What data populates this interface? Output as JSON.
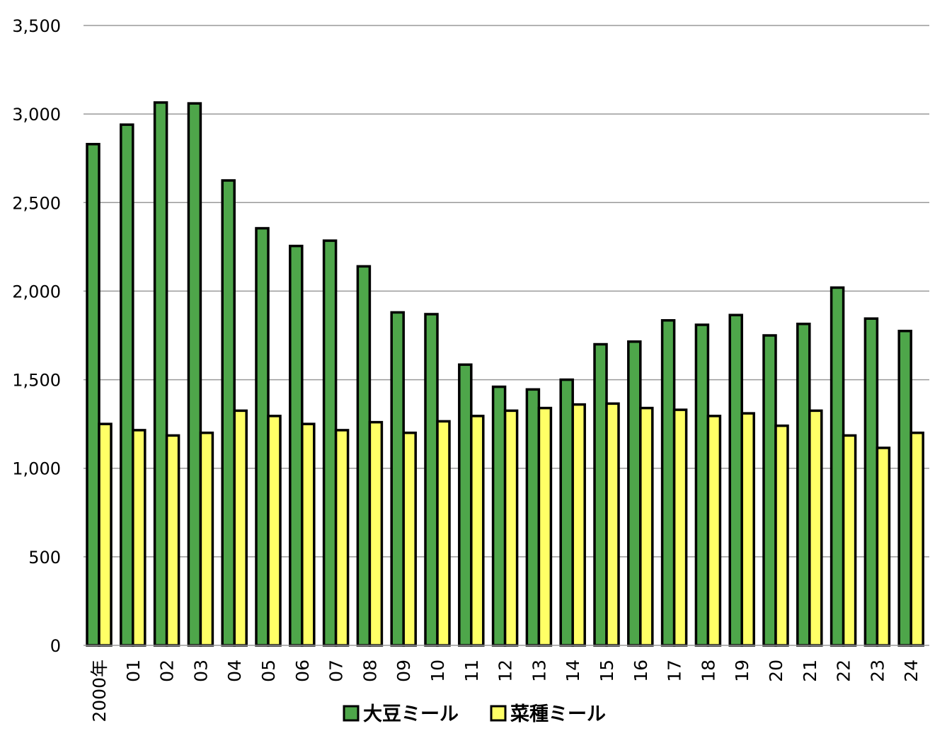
{
  "chart_data": {
    "type": "bar",
    "title": "",
    "xlabel": "",
    "ylabel": "",
    "ylim": [
      0,
      3500
    ],
    "yticks": [
      0,
      500,
      1000,
      1500,
      2000,
      2500,
      3000,
      3500
    ],
    "ytick_labels": [
      "0",
      "500",
      "1,000",
      "1,500",
      "2,000",
      "2,500",
      "3,000",
      "3,500"
    ],
    "grid": true,
    "legend_position": "bottom",
    "categories": [
      "2000年",
      "01",
      "02",
      "03",
      "04",
      "05",
      "06",
      "07",
      "08",
      "09",
      "10",
      "11",
      "12",
      "13",
      "14",
      "15",
      "16",
      "17",
      "18",
      "19",
      "20",
      "21",
      "22",
      "23",
      "24"
    ],
    "series": [
      {
        "name": "大豆ミール",
        "color": "#4ea64a",
        "values": [
          2830,
          2940,
          3065,
          3060,
          2625,
          2355,
          2255,
          2285,
          2140,
          1880,
          1870,
          1585,
          1460,
          1445,
          1500,
          1700,
          1715,
          1835,
          1810,
          1865,
          1750,
          1815,
          2020,
          1845,
          1775
        ]
      },
      {
        "name": "菜種ミール",
        "color": "#ffff66",
        "values": [
          1250,
          1215,
          1185,
          1200,
          1325,
          1295,
          1250,
          1215,
          1260,
          1200,
          1265,
          1295,
          1325,
          1340,
          1360,
          1365,
          1340,
          1330,
          1295,
          1310,
          1240,
          1325,
          1185,
          1115,
          1200
        ]
      }
    ]
  }
}
